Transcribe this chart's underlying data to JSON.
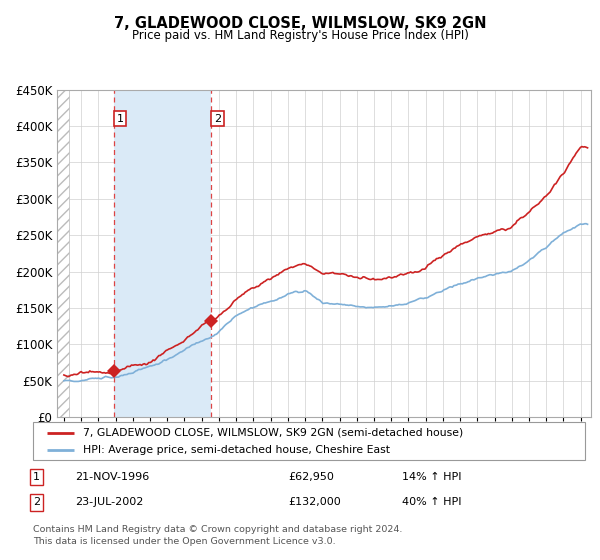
{
  "title": "7, GLADEWOOD CLOSE, WILMSLOW, SK9 2GN",
  "subtitle": "Price paid vs. HM Land Registry's House Price Index (HPI)",
  "ylim": [
    0,
    450000
  ],
  "yticks": [
    0,
    50000,
    100000,
    150000,
    200000,
    250000,
    300000,
    350000,
    400000,
    450000
  ],
  "ytick_labels": [
    "£0",
    "£50K",
    "£100K",
    "£150K",
    "£200K",
    "£250K",
    "£300K",
    "£350K",
    "£400K",
    "£450K"
  ],
  "xlim_start": 1993.6,
  "xlim_end": 2024.6,
  "sale1_date": 1996.896,
  "sale1_price": 62950,
  "sale2_date": 2002.556,
  "sale2_price": 132000,
  "red_line_color": "#cc2222",
  "blue_line_color": "#7fb0d8",
  "marker_color": "#cc2222",
  "sale_region_color": "#daeaf7",
  "dashed_line_color": "#dd4444",
  "grid_color": "#d0d0d0",
  "legend_line1": "7, GLADEWOOD CLOSE, WILMSLOW, SK9 2GN (semi-detached house)",
  "legend_line2": "HPI: Average price, semi-detached house, Cheshire East",
  "table_row1": [
    "1",
    "21-NOV-1996",
    "£62,950",
    "14% ↑ HPI"
  ],
  "table_row2": [
    "2",
    "23-JUL-2002",
    "£132,000",
    "40% ↑ HPI"
  ],
  "footnote": "Contains HM Land Registry data © Crown copyright and database right 2024.\nThis data is licensed under the Open Government Licence v3.0.",
  "background_color": "#ffffff"
}
